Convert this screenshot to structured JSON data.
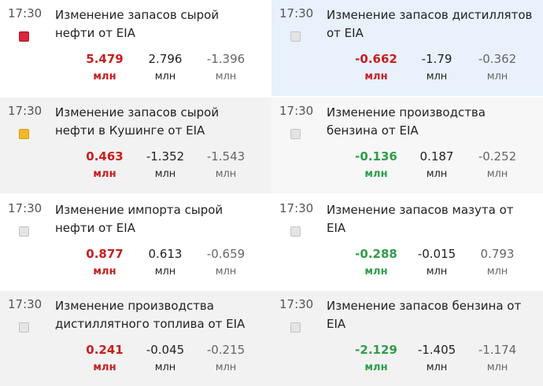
{
  "columns": [
    [
      {
        "time": "17:30",
        "title": "Изменение запасов сырой нефти от EIA",
        "importance": "high",
        "actual_color": "#c81e1e",
        "values": [
          5.479,
          2.796,
          -1.396
        ],
        "units": [
          "млн",
          "млн",
          "млн"
        ]
      },
      {
        "time": "17:30",
        "title": "Изменение запасов сырой нефти в Кушинге от EIA",
        "importance": "medium",
        "actual_color": "#c81e1e",
        "values": [
          0.463,
          -1.352,
          -1.543
        ],
        "units": [
          "млн",
          "млн",
          "млн"
        ]
      },
      {
        "time": "17:30",
        "title": "Изменение импорта сырой нефти от EIA",
        "importance": "low",
        "actual_color": "#c81e1e",
        "values": [
          0.877,
          0.613,
          -0.659
        ],
        "units": [
          "млн",
          "млн",
          "млн"
        ]
      },
      {
        "time": "17:30",
        "title": "Изменение производства дистиллятного топлива от EIA",
        "importance": "low",
        "actual_color": "#c81e1e",
        "values": [
          0.241,
          -0.045,
          -0.215
        ],
        "units": [
          "млн",
          "млн",
          "млн"
        ]
      }
    ],
    [
      {
        "time": "17:30",
        "title": "Изменение запасов дистиллятов от EIA",
        "importance": "low",
        "actual_color": "#c81e1e",
        "values": [
          -0.662,
          -1.79,
          -0.362
        ],
        "units": [
          "млн",
          "млн",
          "млн"
        ]
      },
      {
        "time": "17:30",
        "title": "Изменение производства бензина от EIA",
        "importance": "low",
        "actual_color": "#2e9e4a",
        "values": [
          -0.136,
          0.187,
          -0.252
        ],
        "units": [
          "млн",
          "млн",
          "млн"
        ]
      },
      {
        "time": "17:30",
        "title": "Изменение запасов мазута от EIA",
        "importance": "low",
        "actual_color": "#2e9e4a",
        "values": [
          -0.288,
          -0.015,
          0.793
        ],
        "units": [
          "млн",
          "млн",
          "млн"
        ]
      },
      {
        "time": "17:30",
        "title": "Изменение запасов бензина от EIA",
        "importance": "low",
        "actual_color": "#2e9e4a",
        "values": [
          -2.129,
          -1.405,
          -1.174
        ],
        "units": [
          "млн",
          "млн",
          "млн"
        ]
      }
    ]
  ]
}
